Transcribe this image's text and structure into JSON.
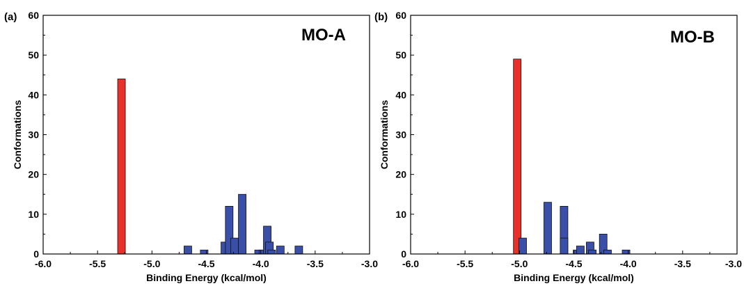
{
  "chart_data": [
    {
      "type": "bar",
      "panel_label": "(a)",
      "title": "MO-A",
      "xlabel": "Binding Energy (kcal/mol)",
      "ylabel": "Conformations",
      "xlim": [
        -6.0,
        -3.0
      ],
      "ylim": [
        0,
        60
      ],
      "xticks": [
        "-6.0",
        "-5.5",
        "-5.0",
        "-4.5",
        "-4.0",
        "-3.5",
        "-3.0"
      ],
      "yticks": [
        "0",
        "10",
        "20",
        "30",
        "40",
        "50",
        "60"
      ],
      "highlight_color": "#e8312a",
      "bar_color": "#3a4fa8",
      "bars": [
        {
          "x": -5.28,
          "y": 44,
          "highlight": true
        },
        {
          "x": -4.67,
          "y": 2
        },
        {
          "x": -4.52,
          "y": 1
        },
        {
          "x": -4.33,
          "y": 3
        },
        {
          "x": -4.29,
          "y": 12
        },
        {
          "x": -4.24,
          "y": 4
        },
        {
          "x": -4.17,
          "y": 15
        },
        {
          "x": -4.02,
          "y": 1
        },
        {
          "x": -3.98,
          "y": 1
        },
        {
          "x": -3.94,
          "y": 7
        },
        {
          "x": -3.92,
          "y": 3
        },
        {
          "x": -3.9,
          "y": 1
        },
        {
          "x": -3.82,
          "y": 2
        },
        {
          "x": -3.65,
          "y": 2
        }
      ]
    },
    {
      "type": "bar",
      "panel_label": "(b)",
      "title": "MO-B",
      "xlabel": "Binding Energy (kcal/mol)",
      "ylabel": "Conformations",
      "xlim": [
        -6.0,
        -3.0
      ],
      "ylim": [
        0,
        60
      ],
      "xticks": [
        "-6.0",
        "-5.5",
        "-5.0",
        "-4.5",
        "-4.0",
        "-3.5",
        "-3.0"
      ],
      "yticks": [
        "0",
        "10",
        "20",
        "30",
        "40",
        "50",
        "60"
      ],
      "highlight_color": "#e8312a",
      "bar_color": "#3a4fa8",
      "bars": [
        {
          "x": -5.02,
          "y": 49,
          "highlight": true
        },
        {
          "x": -4.97,
          "y": 4
        },
        {
          "x": -4.74,
          "y": 13
        },
        {
          "x": -4.59,
          "y": 12
        },
        {
          "x": -4.59,
          "y": 4
        },
        {
          "x": -4.47,
          "y": 1
        },
        {
          "x": -4.44,
          "y": 2
        },
        {
          "x": -4.35,
          "y": 3
        },
        {
          "x": -4.33,
          "y": 1
        },
        {
          "x": -4.23,
          "y": 5
        },
        {
          "x": -4.19,
          "y": 1
        },
        {
          "x": -4.02,
          "y": 1
        }
      ]
    }
  ]
}
